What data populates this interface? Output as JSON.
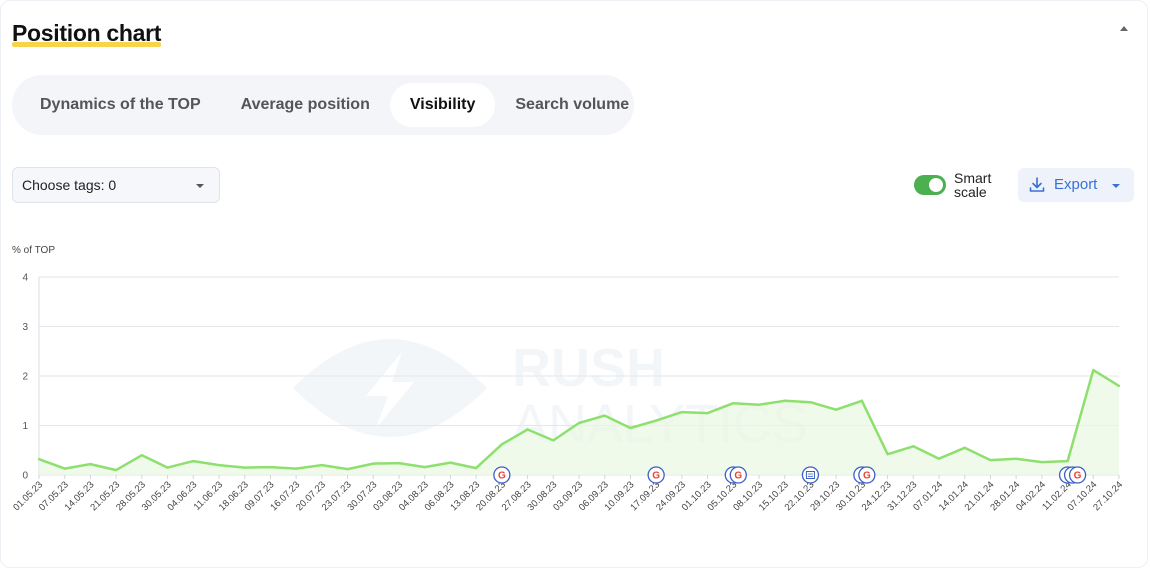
{
  "header": {
    "title": "Position chart"
  },
  "tabs": [
    {
      "label": "Dynamics of the TOP",
      "active": false
    },
    {
      "label": "Average position",
      "active": false
    },
    {
      "label": "Visibility",
      "active": true
    },
    {
      "label": "Search volume",
      "active": false
    }
  ],
  "filters": {
    "tags_label": "Choose tags: 0"
  },
  "controls": {
    "smart_scale_line1": "Smart",
    "smart_scale_line2": "scale",
    "smart_scale_on": true,
    "export_label": "Export"
  },
  "watermark": {
    "line1": "RUSH",
    "line2": "ANALYTICS"
  },
  "colors": {
    "line": "#8ee06e",
    "fill": "#e9f8e3",
    "accent": "#3a6fd8",
    "toggle": "#4caf50",
    "title_underline": "#f7d54a"
  },
  "chart_data": {
    "type": "area",
    "ylabel": "% of TOP",
    "ylim": [
      0,
      4
    ],
    "yticks": [
      "0",
      "1",
      "2",
      "3",
      "4"
    ],
    "grid": true,
    "categories": [
      "01.05.23",
      "07.05.23",
      "14.05.23",
      "21.05.23",
      "28.05.23",
      "30.05.23",
      "04.06.23",
      "11.06.23",
      "18.06.23",
      "09.07.23",
      "16.07.23",
      "20.07.23",
      "23.07.23",
      "30.07.23",
      "03.08.23",
      "04.08.23",
      "06.08.23",
      "13.08.23",
      "20.08.23",
      "27.08.23",
      "30.08.23",
      "03.09.23",
      "06.09.23",
      "10.09.23",
      "17.09.23",
      "24.09.23",
      "01.10.23",
      "05.10.23",
      "08.10.23",
      "15.10.23",
      "22.10.23",
      "29.10.23",
      "30.10.23",
      "24.12.23",
      "31.12.23",
      "07.01.24",
      "14.01.24",
      "21.01.24",
      "28.01.24",
      "04.02.24",
      "11.02.24",
      "07.10.24",
      "27.10.24"
    ],
    "series": [
      {
        "values": [
          0.32,
          0.13,
          0.22,
          0.1,
          0.4,
          0.15,
          0.28,
          0.2,
          0.15,
          0.16,
          0.13,
          0.2,
          0.12,
          0.23,
          0.24,
          0.16,
          0.25,
          0.14,
          0.62,
          0.92,
          0.7,
          1.05,
          1.2,
          0.95,
          1.1,
          1.27,
          1.25,
          1.45,
          1.42,
          1.5,
          1.47,
          1.32,
          1.5,
          0.42,
          0.58,
          0.33,
          0.55,
          0.3,
          0.33,
          0.26,
          0.28,
          2.12,
          1.8
        ]
      }
    ],
    "annotations": [
      {
        "x": "20.08.23",
        "icons": [
          "google-icon"
        ]
      },
      {
        "x": "17.09.23",
        "icons": [
          "google-icon"
        ]
      },
      {
        "x": "05.10.23",
        "icons": [
          "google-icon",
          "google-icon"
        ]
      },
      {
        "x": "22.10.23",
        "icons": [
          "note-icon"
        ]
      },
      {
        "x": "30.10.23",
        "icons": [
          "google-icon",
          "google-icon"
        ]
      },
      {
        "x": "11.02.24",
        "icons": [
          "google-icon",
          "google-icon",
          "google-icon"
        ]
      }
    ]
  }
}
